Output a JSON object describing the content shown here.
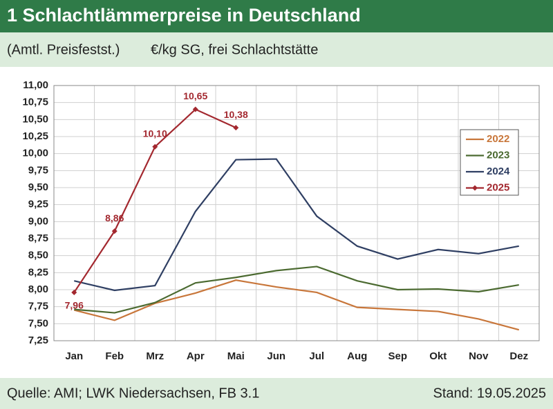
{
  "chart_data": {
    "type": "line",
    "title": "1 Schlachtlämmerpreise in Deutschland",
    "subtitle": [
      "(Amtl. Preisfestst.)",
      "€/kg SG, frei Schlachtstätte"
    ],
    "source": "Quelle: AMI; LWK Niedersachsen, FB 3.1",
    "date_note": "Stand: 19.05.2025",
    "categories": [
      "Jan",
      "Feb",
      "Mrz",
      "Apr",
      "Mai",
      "Jun",
      "Jul",
      "Aug",
      "Sep",
      "Okt",
      "Nov",
      "Dez"
    ],
    "series": [
      {
        "name": "2022",
        "color": "#c8763a",
        "values": [
          7.7,
          7.55,
          7.8,
          7.95,
          8.14,
          8.04,
          7.96,
          7.74,
          7.71,
          7.68,
          7.57,
          7.41
        ]
      },
      {
        "name": "2023",
        "color": "#4b6a30",
        "values": [
          7.71,
          7.66,
          7.81,
          8.1,
          8.18,
          8.28,
          8.34,
          8.13,
          8.0,
          8.01,
          7.97,
          8.07
        ]
      },
      {
        "name": "2024",
        "color": "#2f3f63",
        "values": [
          8.13,
          7.99,
          8.06,
          9.15,
          9.91,
          9.92,
          9.08,
          8.64,
          8.45,
          8.59,
          8.53,
          8.64
        ]
      },
      {
        "name": "2025",
        "color": "#a3282f",
        "marker": "diamond",
        "values": [
          7.96,
          8.86,
          10.1,
          10.65,
          10.38,
          null,
          null,
          null,
          null,
          null,
          null,
          null
        ],
        "value_labels": [
          "7,96",
          "8,86",
          "10,10",
          "10,65",
          "10,38",
          null,
          null,
          null,
          null,
          null,
          null,
          null
        ]
      }
    ],
    "ylim": [
      7.25,
      11.0
    ],
    "yticks": [
      {
        "value": 7.25,
        "label": "7,25"
      },
      {
        "value": 7.5,
        "label": "7,50"
      },
      {
        "value": 7.75,
        "label": "7,75"
      },
      {
        "value": 8.0,
        "label": "8,00"
      },
      {
        "value": 8.25,
        "label": "8,25"
      },
      {
        "value": 8.5,
        "label": "8,50"
      },
      {
        "value": 8.75,
        "label": "8,75"
      },
      {
        "value": 9.0,
        "label": "9,00"
      },
      {
        "value": 9.25,
        "label": "9,25"
      },
      {
        "value": 9.5,
        "label": "9,50"
      },
      {
        "value": 9.75,
        "label": "9,75"
      },
      {
        "value": 10.0,
        "label": "10,00"
      },
      {
        "value": 10.25,
        "label": "10,25"
      },
      {
        "value": 10.5,
        "label": "10,50"
      },
      {
        "value": 10.75,
        "label": "10,75"
      },
      {
        "value": 11.0,
        "label": "11,00"
      }
    ],
    "grid": true,
    "legend": "right"
  }
}
